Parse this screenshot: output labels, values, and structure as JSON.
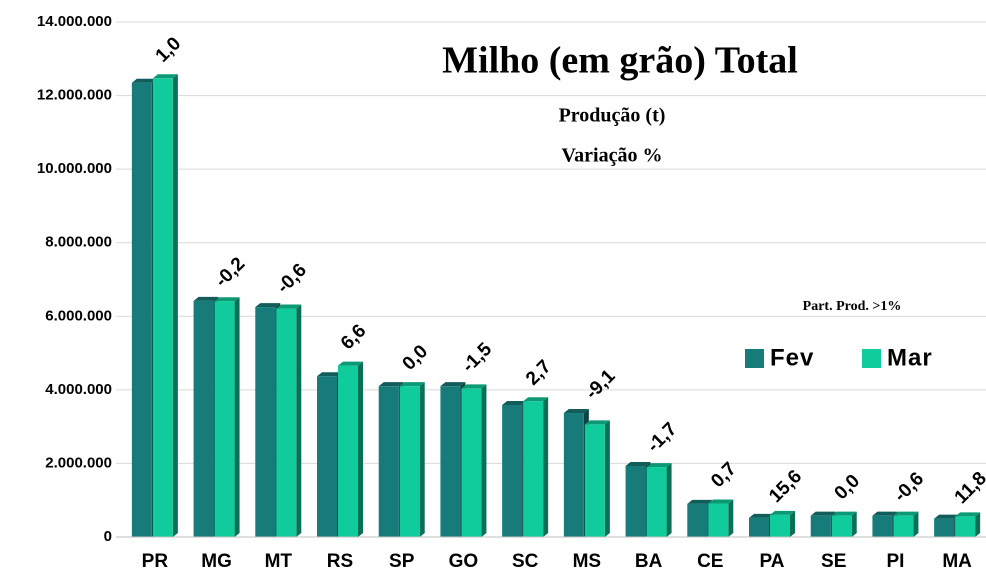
{
  "chart_data": {
    "type": "bar3d",
    "title": "Milho (em grão) Total",
    "subtitle_lines": [
      "Produção (t)",
      "Variação %"
    ],
    "annotation": "Part. Prod. >1%",
    "categories": [
      "PR",
      "MG",
      "MT",
      "RS",
      "SP",
      "GO",
      "SC",
      "MS",
      "BA",
      "CE",
      "PA",
      "SE",
      "PI",
      "MA"
    ],
    "series": [
      {
        "name": "Fev",
        "color": "#177c79",
        "values": [
          12350000,
          6420000,
          6250000,
          4370000,
          4100000,
          4100000,
          3590000,
          3370000,
          1930000,
          900000,
          520000,
          580000,
          580000,
          500000
        ]
      },
      {
        "name": "Mar",
        "color": "#10cc9c",
        "values": [
          12470000,
          6410000,
          6210000,
          4660000,
          4100000,
          4040000,
          3690000,
          3060000,
          1900000,
          910000,
          600000,
          580000,
          580000,
          560000
        ]
      }
    ],
    "variation": {
      "values": [
        1.0,
        -0.2,
        -0.6,
        6.6,
        0.0,
        -1.5,
        2.7,
        -9.1,
        -1.7,
        0.7,
        15.6,
        0.0,
        -0.6,
        11.8
      ],
      "value_labels": [
        "1,0",
        "-0,2",
        "-0,6",
        "6,6",
        "0,0",
        "-1,5",
        "2,7",
        "-9,1",
        "-1,7",
        "0,7",
        "15,6",
        "0,0",
        "-0,6",
        "11,8"
      ]
    },
    "ylim": [
      0,
      14000000
    ],
    "yticks": [
      0,
      {
        "value": 2000000,
        "label": "2.000.000"
      },
      {
        "value": 4000000,
        "label": "4.000.000"
      },
      {
        "value": 6000000,
        "label": "6.000.000"
      },
      {
        "value": 8000000,
        "label": "8.000.000"
      },
      {
        "value": 10000000,
        "label": "10.000.000"
      },
      {
        "value": 12000000,
        "label": "12.000.000"
      },
      {
        "value": 14000000,
        "label": "14.000.000"
      }
    ],
    "grid": true,
    "legend": "right"
  }
}
